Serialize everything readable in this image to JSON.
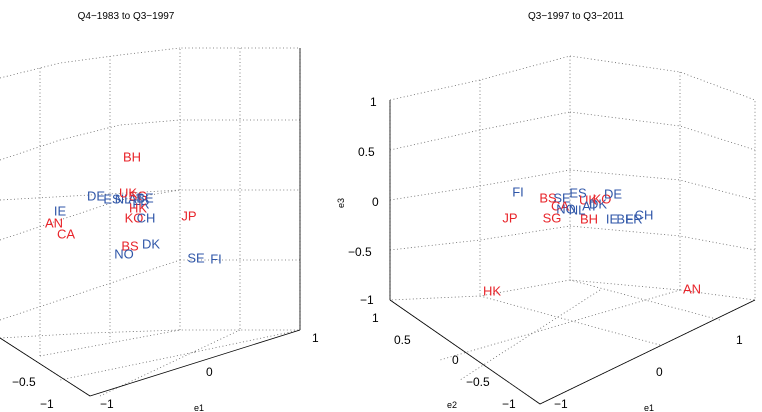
{
  "chart_data": [
    {
      "type": "scatter",
      "title": "Q4−1983 to Q3−1997",
      "xlabel": "e1",
      "ylabel": "",
      "zlabel": "",
      "colors": {
        "red_group": "#e8242a",
        "blue_group": "#2f56a8"
      },
      "x_ticks": [
        "−1",
        "0",
        "1"
      ],
      "y_ticks": [
        "−1",
        "−0.5"
      ],
      "points": [
        {
          "label": "BH",
          "group": "red"
        },
        {
          "label": "DE",
          "group": "blue"
        },
        {
          "label": "IE",
          "group": "blue"
        },
        {
          "label": "AN",
          "group": "red"
        },
        {
          "label": "CA",
          "group": "red"
        },
        {
          "label": "ES",
          "group": "blue"
        },
        {
          "label": "NL",
          "group": "blue"
        },
        {
          "label": "AT",
          "group": "blue"
        },
        {
          "label": "UK",
          "group": "red"
        },
        {
          "label": "SG",
          "group": "red"
        },
        {
          "label": "BE",
          "group": "blue"
        },
        {
          "label": "FR",
          "group": "blue"
        },
        {
          "label": "HK",
          "group": "red"
        },
        {
          "label": "KO",
          "group": "red"
        },
        {
          "label": "CH",
          "group": "blue"
        },
        {
          "label": "JP",
          "group": "red"
        },
        {
          "label": "BS",
          "group": "red"
        },
        {
          "label": "DK",
          "group": "blue"
        },
        {
          "label": "NO",
          "group": "blue"
        },
        {
          "label": "SE",
          "group": "blue"
        },
        {
          "label": "FI",
          "group": "blue"
        }
      ]
    },
    {
      "type": "scatter",
      "title": "Q3−1997 to Q3−2011",
      "xlabel": "e1",
      "ylabel": "e2",
      "zlabel": "e3",
      "colors": {
        "red_group": "#e8242a",
        "blue_group": "#2f56a8"
      },
      "x_ticks": [
        "−1",
        "0",
        "1"
      ],
      "y_ticks": [
        "−1",
        "−0.5",
        "0",
        "0.5",
        "1"
      ],
      "z_ticks": [
        "−1",
        "−0.5",
        "0",
        "0.5",
        "1"
      ],
      "points": [
        {
          "label": "FI",
          "group": "blue"
        },
        {
          "label": "BS",
          "group": "red"
        },
        {
          "label": "SE",
          "group": "blue"
        },
        {
          "label": "ES",
          "group": "blue"
        },
        {
          "label": "CA",
          "group": "red"
        },
        {
          "label": "UK",
          "group": "red"
        },
        {
          "label": "NO",
          "group": "blue"
        },
        {
          "label": "NL",
          "group": "blue"
        },
        {
          "label": "AT",
          "group": "blue"
        },
        {
          "label": "DK",
          "group": "blue"
        },
        {
          "label": "KO",
          "group": "red"
        },
        {
          "label": "DE",
          "group": "blue"
        },
        {
          "label": "JP",
          "group": "red"
        },
        {
          "label": "SG",
          "group": "red"
        },
        {
          "label": "BH",
          "group": "red"
        },
        {
          "label": "IE",
          "group": "blue"
        },
        {
          "label": "BE",
          "group": "blue"
        },
        {
          "label": "FR",
          "group": "blue"
        },
        {
          "label": "CH",
          "group": "blue"
        },
        {
          "label": "HK",
          "group": "red"
        },
        {
          "label": "AN",
          "group": "red"
        }
      ]
    }
  ]
}
